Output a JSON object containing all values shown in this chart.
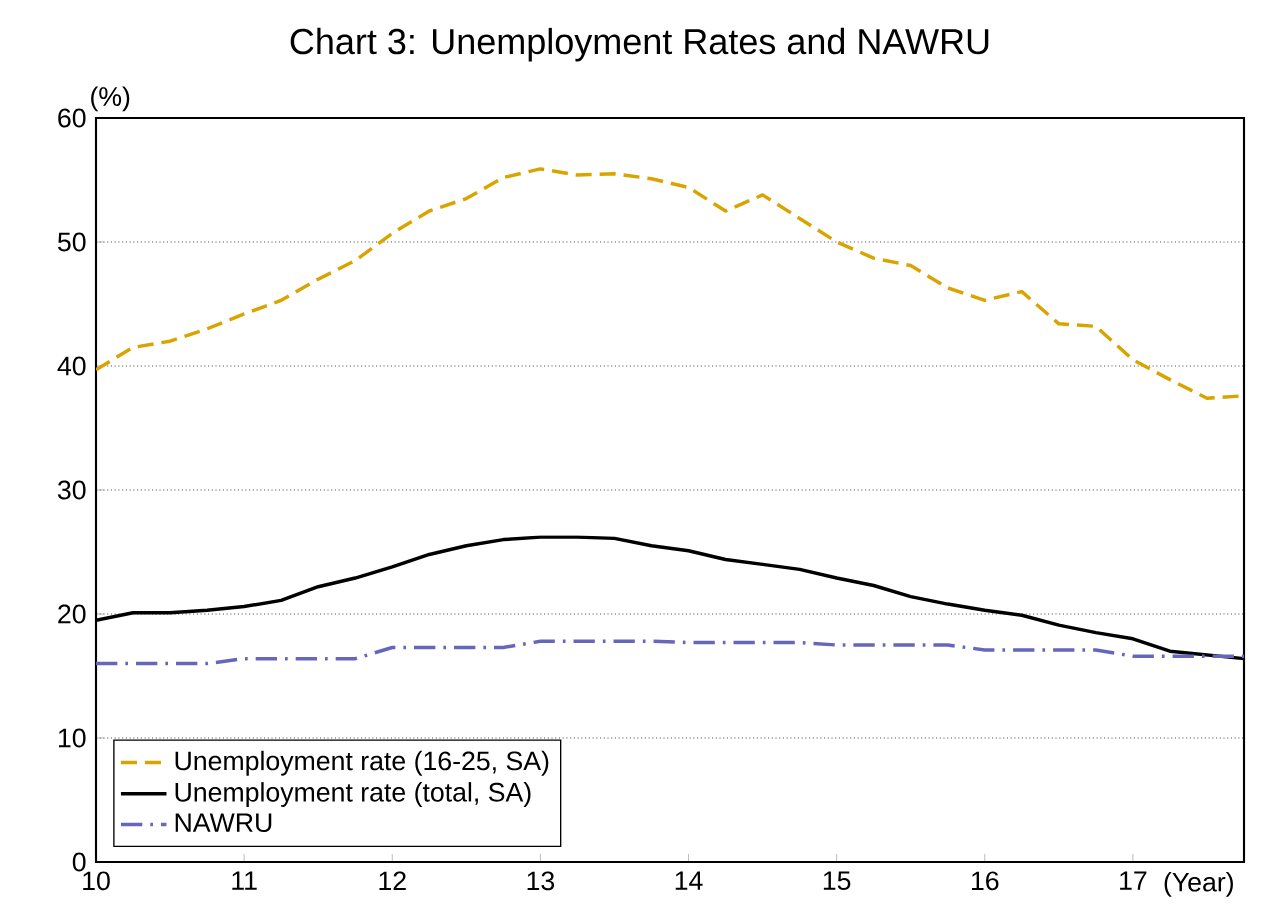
{
  "chart_data": {
    "type": "line",
    "title": "Chart 3: Unemployment Rates and NAWRU",
    "xlabel": "(Year)",
    "ylabel": "(%)",
    "x": [
      10,
      10.25,
      10.5,
      10.75,
      11,
      11.25,
      11.5,
      11.75,
      12,
      12.25,
      12.5,
      12.75,
      13,
      13.25,
      13.5,
      13.75,
      14,
      14.25,
      14.5,
      14.75,
      15,
      15.25,
      15.5,
      15.75,
      16,
      16.25,
      16.5,
      16.75,
      17,
      17.25,
      17.5,
      17.75
    ],
    "series": [
      {
        "name": "Unemployment rate (16-25, SA)",
        "color": "#d9a400",
        "line_style": "dashed",
        "values": [
          39.7,
          41.5,
          42.0,
          43.0,
          44.2,
          45.3,
          47.0,
          48.5,
          50.7,
          52.5,
          53.5,
          55.2,
          55.9,
          55.4,
          55.5,
          55.1,
          54.4,
          52.5,
          53.8,
          51.9,
          50.0,
          48.7,
          48.1,
          46.3,
          45.3,
          46.0,
          43.4,
          43.2,
          40.5,
          38.9,
          37.4,
          37.6
        ]
      },
      {
        "name": "Unemployment rate (total, SA)",
        "color": "#000000",
        "line_style": "solid",
        "values": [
          19.5,
          20.1,
          20.1,
          20.3,
          20.6,
          21.1,
          22.2,
          22.9,
          23.8,
          24.8,
          25.5,
          26.0,
          26.2,
          26.2,
          26.1,
          25.5,
          25.1,
          24.4,
          24.0,
          23.6,
          22.9,
          22.3,
          21.4,
          20.8,
          20.3,
          19.9,
          19.1,
          18.5,
          18.0,
          17.0,
          16.7,
          16.4
        ]
      },
      {
        "name": "NAWRU",
        "color": "#6666bb",
        "line_style": "dashdot",
        "values": [
          16.0,
          16.0,
          16.0,
          16.0,
          16.4,
          16.4,
          16.4,
          16.4,
          17.3,
          17.3,
          17.3,
          17.3,
          17.8,
          17.8,
          17.8,
          17.8,
          17.7,
          17.7,
          17.7,
          17.7,
          17.5,
          17.5,
          17.5,
          17.5,
          17.1,
          17.1,
          17.1,
          17.1,
          16.6,
          16.6,
          16.6,
          16.6
        ]
      }
    ],
    "xlim": [
      10,
      17.75
    ],
    "xticks": [
      10,
      11,
      12,
      13,
      14,
      15,
      16,
      17
    ],
    "ylim": [
      0,
      60
    ],
    "yticks": [
      0,
      10,
      20,
      30,
      40,
      50,
      60
    ],
    "grid": "y",
    "legend": "bottom left",
    "marker": "none"
  }
}
